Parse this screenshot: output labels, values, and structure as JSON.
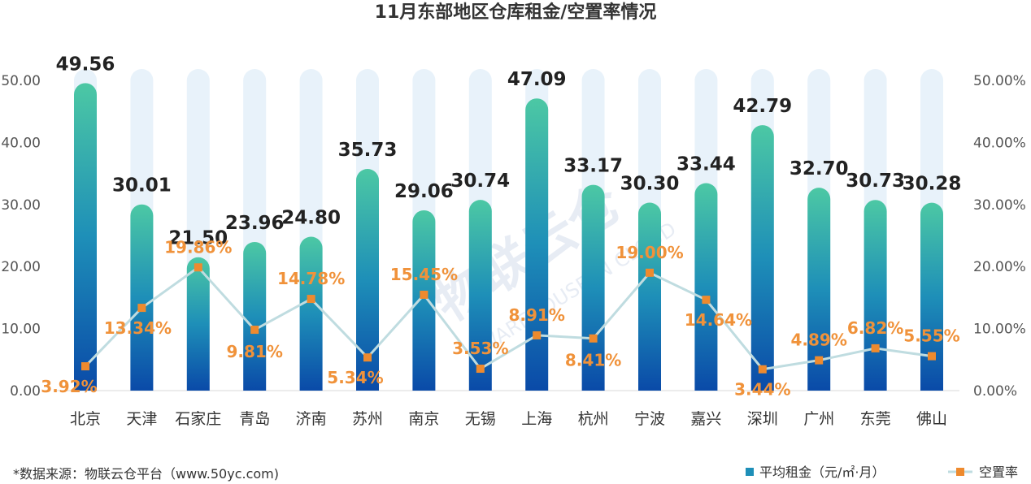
{
  "chart_data": {
    "type": "bar+line",
    "title": "11月东部地区仓库租金/空置率情况",
    "categories": [
      "北京",
      "天津",
      "石家庄",
      "青岛",
      "济南",
      "苏州",
      "南京",
      "无锡",
      "上海",
      "杭州",
      "宁波",
      "嘉兴",
      "深圳",
      "广州",
      "东莞",
      "佛山"
    ],
    "series": [
      {
        "name": "平均租金（元/㎡·月）",
        "type": "bar",
        "axis": "left",
        "values": [
          49.56,
          30.01,
          21.5,
          23.96,
          24.8,
          35.73,
          29.06,
          30.74,
          47.09,
          33.17,
          30.3,
          33.44,
          42.79,
          32.7,
          30.73,
          30.28
        ],
        "labels": [
          "49.56",
          "30.01",
          "21.50",
          "23.96",
          "24.80",
          "35.73",
          "29.06",
          "30.74",
          "47.09",
          "33.17",
          "30.30",
          "33.44",
          "42.79",
          "32.70",
          "30.73",
          "30.28"
        ],
        "color_top": "#4CC8A4",
        "color_bottom": "#0A4AA8"
      },
      {
        "name": "空置率",
        "type": "line",
        "axis": "right",
        "values": [
          3.92,
          13.34,
          19.86,
          9.81,
          14.78,
          5.34,
          15.45,
          3.53,
          8.91,
          8.41,
          19.0,
          14.64,
          3.44,
          4.89,
          6.82,
          5.55
        ],
        "labels": [
          "3.92%",
          "13.34%",
          "19.86%",
          "9.81%",
          "14.78%",
          "5.34%",
          "15.45%",
          "3.53%",
          "8.91%",
          "8.41%",
          "19.00%",
          "14.64%",
          "3.44%",
          "4.89%",
          "6.82%",
          "5.55%"
        ],
        "line_color": "#BFDCE0",
        "marker_color": "#EE8A2E"
      }
    ],
    "y_left": {
      "lim": [
        0,
        50
      ],
      "ticks": [
        "0.00",
        "10.00",
        "20.00",
        "30.00",
        "40.00",
        "50.00"
      ]
    },
    "y_right": {
      "lim": [
        0,
        50
      ],
      "ticks": [
        "0.00%",
        "10.00%",
        "20.00%",
        "30.00%",
        "40.00%",
        "50.00%"
      ]
    },
    "background_bar_color": "#E8F2FA",
    "legend_position": "bottom-right",
    "grid": false
  },
  "footer": {
    "source": "*数据来源：物联云仓平台（www.50yc.com)"
  },
  "watermark": {
    "text": "物联云仓",
    "subtext": "WAREHOUSE IN CLOUD"
  }
}
